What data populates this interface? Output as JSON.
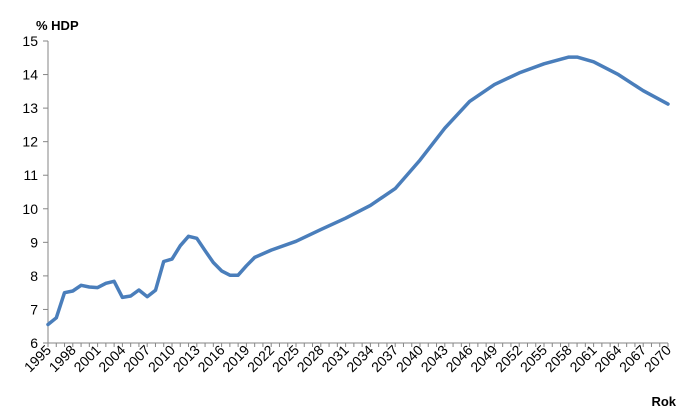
{
  "chart_data": {
    "type": "line",
    "ylabel": "% HDP",
    "xlabel": "Rok",
    "ylim": [
      6,
      15
    ],
    "yticks": [
      6,
      7,
      8,
      9,
      10,
      11,
      12,
      13,
      14,
      15
    ],
    "xlim": [
      1995,
      2070
    ],
    "xticks": [
      1995,
      1998,
      2001,
      2004,
      2007,
      2010,
      2013,
      2016,
      2019,
      2022,
      2025,
      2028,
      2031,
      2034,
      2037,
      2040,
      2043,
      2046,
      2049,
      2052,
      2055,
      2058,
      2061,
      2064,
      2067,
      2070
    ],
    "grid": false,
    "legend": "none",
    "series": [
      {
        "color": "#4a7ebb",
        "x": [
          1995,
          1996,
          1997,
          1998,
          1999,
          2000,
          2001,
          2002,
          2003,
          2004,
          2005,
          2006,
          2007,
          2008,
          2009,
          2010,
          2011,
          2012,
          2013,
          2014,
          2015,
          2016,
          2017,
          2018,
          2019,
          2020,
          2022,
          2025,
          2028,
          2031,
          2034,
          2037,
          2040,
          2043,
          2046,
          2049,
          2052,
          2055,
          2058,
          2059,
          2061,
          2064,
          2067,
          2070
        ],
        "y": [
          6.55,
          6.75,
          7.5,
          7.55,
          7.72,
          7.67,
          7.65,
          7.78,
          7.84,
          7.36,
          7.4,
          7.58,
          7.38,
          7.57,
          8.43,
          8.5,
          8.9,
          9.18,
          9.12,
          8.75,
          8.4,
          8.15,
          8.02,
          8.02,
          8.3,
          8.55,
          8.77,
          9.03,
          9.38,
          9.72,
          10.1,
          10.6,
          11.45,
          12.4,
          13.2,
          13.7,
          14.05,
          14.32,
          14.52,
          14.52,
          14.38,
          14.0,
          13.52,
          13.12
        ]
      }
    ]
  }
}
